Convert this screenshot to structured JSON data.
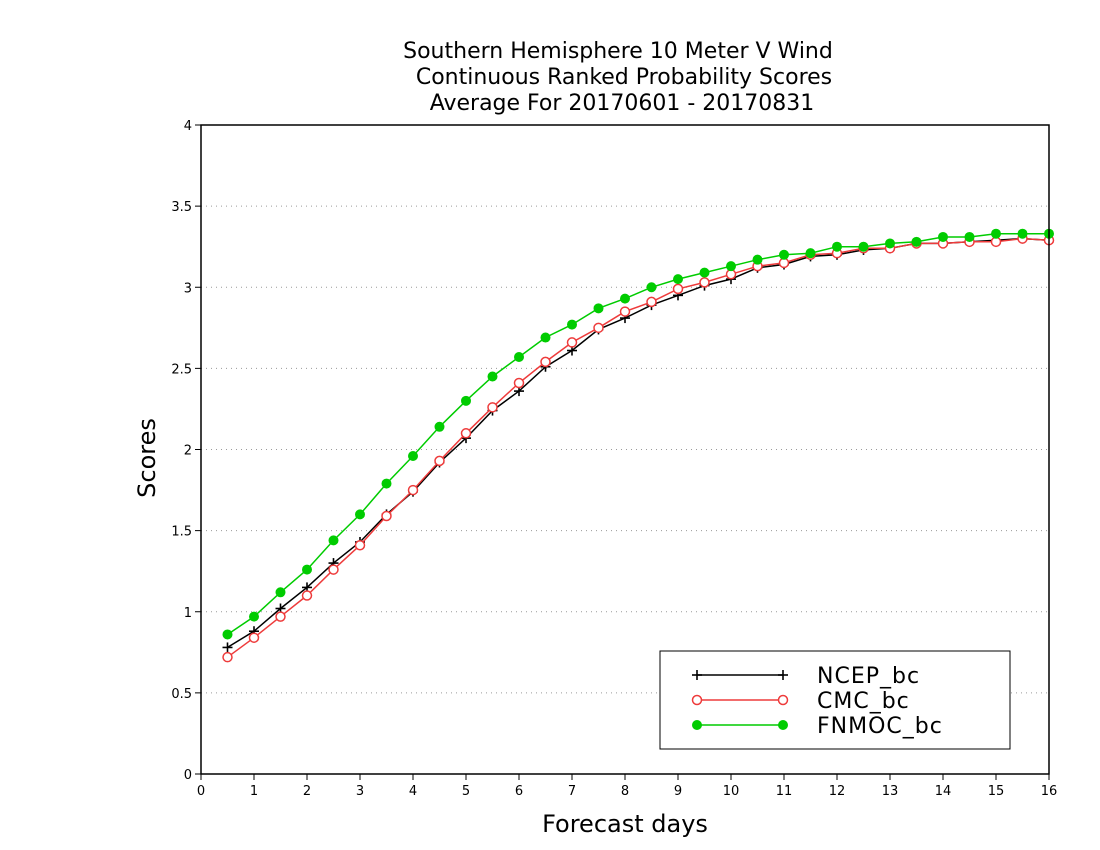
{
  "chart_data": {
    "type": "line",
    "title_lines": [
      "Southern Hemisphere 10 Meter V Wind",
      "Continuous Ranked Probability Scores",
      "Average For 20170601 - 20170831"
    ],
    "xlabel": "Forecast days",
    "ylabel": "Scores",
    "xlim": [
      0,
      16
    ],
    "ylim": [
      0,
      4
    ],
    "x_ticks": [
      "0",
      "1",
      "2",
      "3",
      "4",
      "5",
      "6",
      "7",
      "8",
      "9",
      "10",
      "11",
      "12",
      "13",
      "14",
      "15",
      "16"
    ],
    "y_ticks": [
      "0",
      "0.5",
      "1",
      "1.5",
      "2",
      "2.5",
      "3",
      "3.5",
      "4"
    ],
    "grid": "horizontal dotted",
    "legend_position": "bottom-right",
    "x": [
      0.5,
      1,
      1.5,
      2,
      2.5,
      3,
      3.5,
      4,
      4.5,
      5,
      5.5,
      6,
      6.5,
      7,
      7.5,
      8,
      8.5,
      9,
      9.5,
      10,
      10.5,
      11,
      11.5,
      12,
      12.5,
      13,
      13.5,
      14,
      14.5,
      15,
      15.5,
      16
    ],
    "series": [
      {
        "name": "NCEP_bc",
        "color": "#000000",
        "marker": "plus",
        "values": [
          0.78,
          0.88,
          1.02,
          1.15,
          1.3,
          1.43,
          1.6,
          1.74,
          1.92,
          2.07,
          2.24,
          2.36,
          2.51,
          2.61,
          2.74,
          2.81,
          2.89,
          2.95,
          3.01,
          3.05,
          3.12,
          3.14,
          3.19,
          3.2,
          3.23,
          3.24,
          3.27,
          3.27,
          3.28,
          3.29,
          3.3,
          3.29
        ]
      },
      {
        "name": "CMC_bc",
        "color": "#ee3b3b",
        "marker": "open-circle",
        "values": [
          0.72,
          0.84,
          0.97,
          1.1,
          1.26,
          1.41,
          1.59,
          1.75,
          1.93,
          2.1,
          2.26,
          2.41,
          2.54,
          2.66,
          2.75,
          2.85,
          2.91,
          2.99,
          3.03,
          3.08,
          3.13,
          3.15,
          3.2,
          3.21,
          3.24,
          3.24,
          3.27,
          3.27,
          3.28,
          3.28,
          3.3,
          3.29
        ]
      },
      {
        "name": "FNMOC_bc",
        "color": "#00cc00",
        "marker": "filled-circle",
        "values": [
          0.86,
          0.97,
          1.12,
          1.26,
          1.44,
          1.6,
          1.79,
          1.96,
          2.14,
          2.3,
          2.45,
          2.57,
          2.69,
          2.77,
          2.87,
          2.93,
          3.0,
          3.05,
          3.09,
          3.13,
          3.17,
          3.2,
          3.21,
          3.25,
          3.25,
          3.27,
          3.28,
          3.31,
          3.31,
          3.33,
          3.33,
          3.33
        ]
      }
    ]
  }
}
